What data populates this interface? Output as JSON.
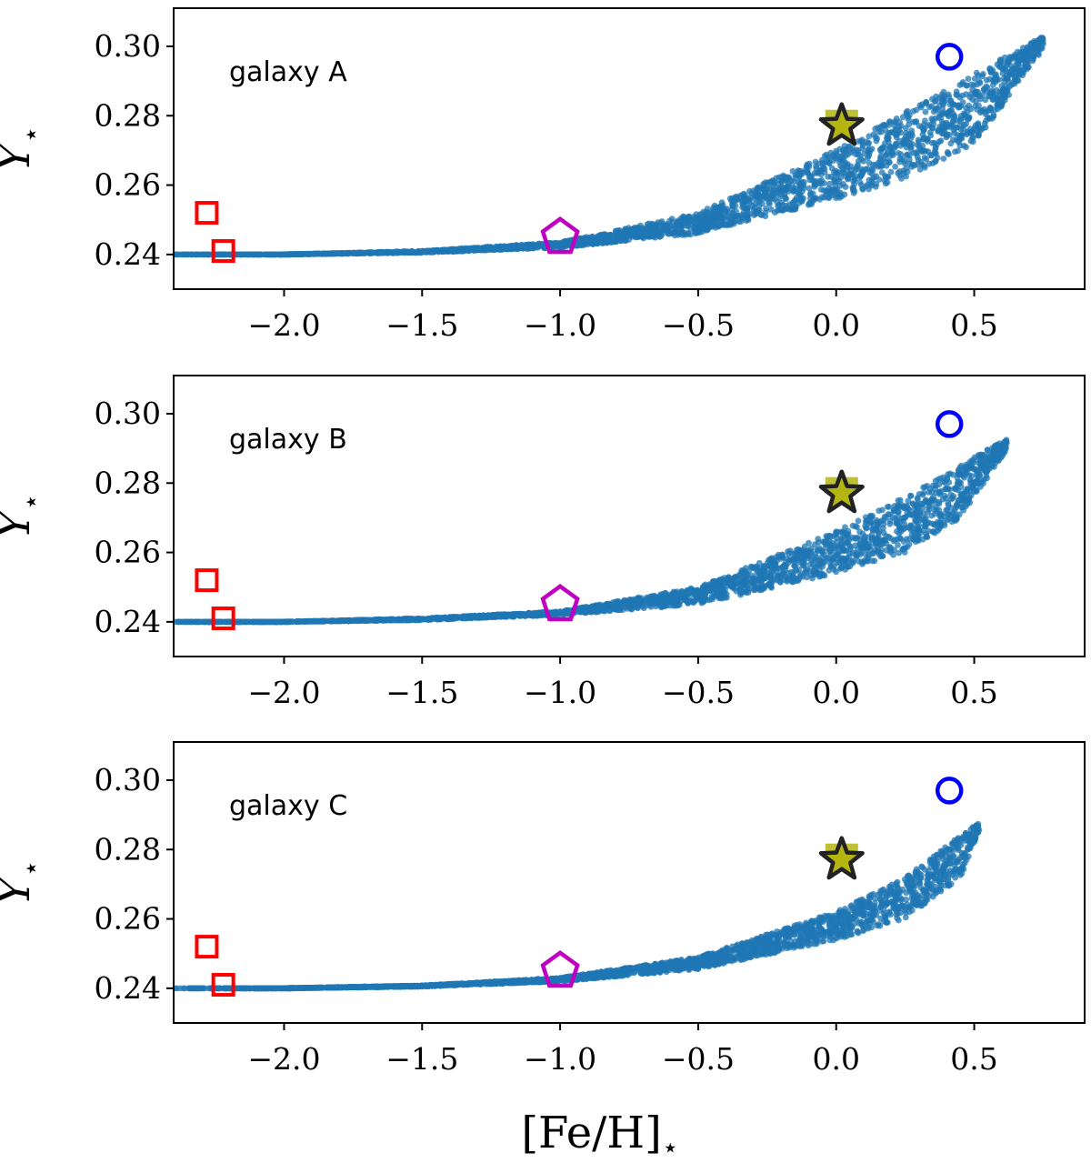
{
  "chart_data": {
    "type": "scatter",
    "xlabel_main": "[Fe/H]",
    "xlabel_sub": "⋆",
    "ylabel_main": "Y",
    "ylabel_sub": "⋆",
    "xlim": [
      -2.4,
      0.9
    ],
    "ylim": [
      0.23,
      0.311
    ],
    "x_ticks": [
      -2.0,
      -1.5,
      -1.0,
      -0.5,
      0.0,
      0.5
    ],
    "x_tick_labels": [
      "−2.0",
      "−1.5",
      "−1.0",
      "−0.5",
      "0.0",
      "0.5"
    ],
    "y_ticks": [
      0.24,
      0.26,
      0.28,
      0.3
    ],
    "y_tick_labels": [
      "0.24",
      "0.26",
      "0.28",
      "0.30"
    ],
    "point_color": "#1f77b4",
    "reference_markers": [
      {
        "name": "red-square-1",
        "shape": "square",
        "color": "#ff0000",
        "x": -2.28,
        "y": 0.252
      },
      {
        "name": "red-square-2",
        "shape": "square",
        "color": "#ff0000",
        "x": -2.22,
        "y": 0.241
      },
      {
        "name": "magenta-pentagon",
        "shape": "pentagon",
        "color": "#c000c0",
        "x": -1.0,
        "y": 0.245
      },
      {
        "name": "sun-star",
        "shape": "star",
        "color": "#b5b512",
        "x": 0.02,
        "y": 0.277
      },
      {
        "name": "blue-circle",
        "shape": "circle",
        "color": "#0000ff",
        "x": 0.41,
        "y": 0.297
      }
    ],
    "panels": [
      {
        "label": "galaxy A",
        "band": [
          [
            -2.4,
            0.24,
            0.24
          ],
          [
            -2.0,
            0.24,
            0.24
          ],
          [
            -1.5,
            0.2405,
            0.241
          ],
          [
            -1.0,
            0.242,
            0.2435
          ],
          [
            -0.5,
            0.246,
            0.252
          ],
          [
            0.0,
            0.256,
            0.27
          ],
          [
            0.25,
            0.262,
            0.281
          ],
          [
            0.5,
            0.272,
            0.292
          ],
          [
            0.75,
            0.299,
            0.303
          ]
        ]
      },
      {
        "label": "galaxy B",
        "band": [
          [
            -2.4,
            0.24,
            0.24
          ],
          [
            -2.0,
            0.24,
            0.24
          ],
          [
            -1.5,
            0.2405,
            0.241
          ],
          [
            -1.0,
            0.242,
            0.243
          ],
          [
            -0.5,
            0.245,
            0.25
          ],
          [
            0.0,
            0.254,
            0.266
          ],
          [
            0.25,
            0.26,
            0.276
          ],
          [
            0.45,
            0.27,
            0.285
          ],
          [
            0.62,
            0.29,
            0.293
          ]
        ]
      },
      {
        "label": "galaxy C",
        "band": [
          [
            -2.4,
            0.24,
            0.24
          ],
          [
            -2.0,
            0.24,
            0.24
          ],
          [
            -1.5,
            0.2405,
            0.2408
          ],
          [
            -1.0,
            0.242,
            0.243
          ],
          [
            -0.5,
            0.2455,
            0.249
          ],
          [
            0.0,
            0.254,
            0.262
          ],
          [
            0.25,
            0.26,
            0.272
          ],
          [
            0.45,
            0.272,
            0.284
          ],
          [
            0.52,
            0.286,
            0.288
          ]
        ]
      }
    ]
  }
}
